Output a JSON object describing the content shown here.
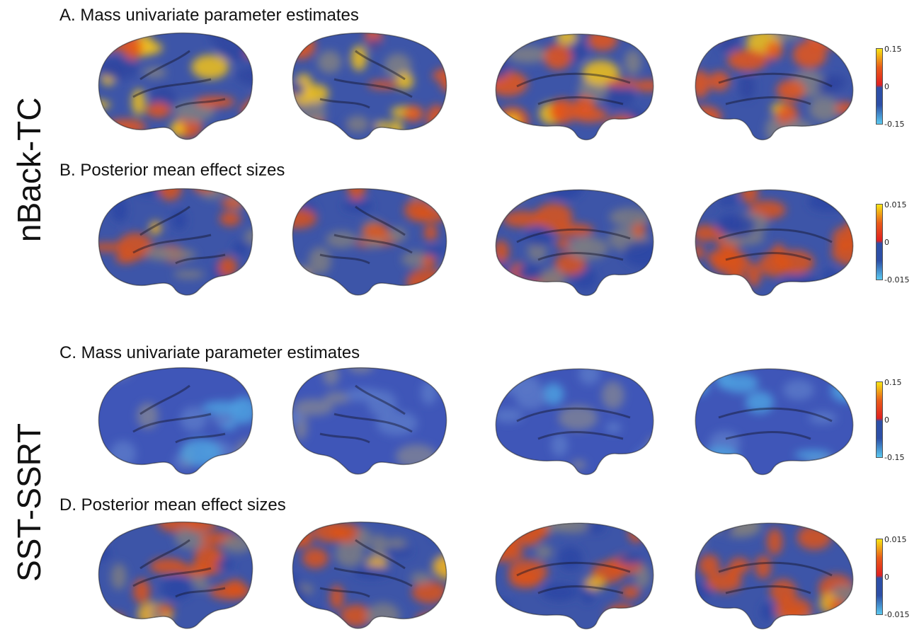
{
  "row_labels": {
    "top": "nBack-TC",
    "bottom": "SST-SSRT"
  },
  "panels": [
    {
      "title": "A. Mass univariate parameter estimates",
      "scale_max": "0.15",
      "scale_mid": "0",
      "scale_min": "-0.15",
      "pattern": "warm-strong"
    },
    {
      "title": "B. Posterior mean effect sizes",
      "scale_max": "0.015",
      "scale_mid": "0",
      "scale_min": "-0.015",
      "pattern": "mixed"
    },
    {
      "title": "C. Mass univariate parameter estimates",
      "scale_max": "0.15",
      "scale_mid": "0",
      "scale_min": "-0.15",
      "pattern": "blue"
    },
    {
      "title": "D. Posterior mean effect sizes",
      "scale_max": "0.015",
      "scale_mid": "0",
      "scale_min": "-0.015",
      "pattern": "mixed"
    }
  ],
  "brain_views": [
    "left-lateral",
    "right-lateral",
    "left-medial",
    "right-medial"
  ],
  "colors": {
    "negative_light": "#5ac8f0",
    "negative_dark": "#2d4fa6",
    "zero": "#e02020",
    "positive_mid": "#e85a1a",
    "positive_high": "#f7e414",
    "surface_gray": "#7f7f83"
  }
}
